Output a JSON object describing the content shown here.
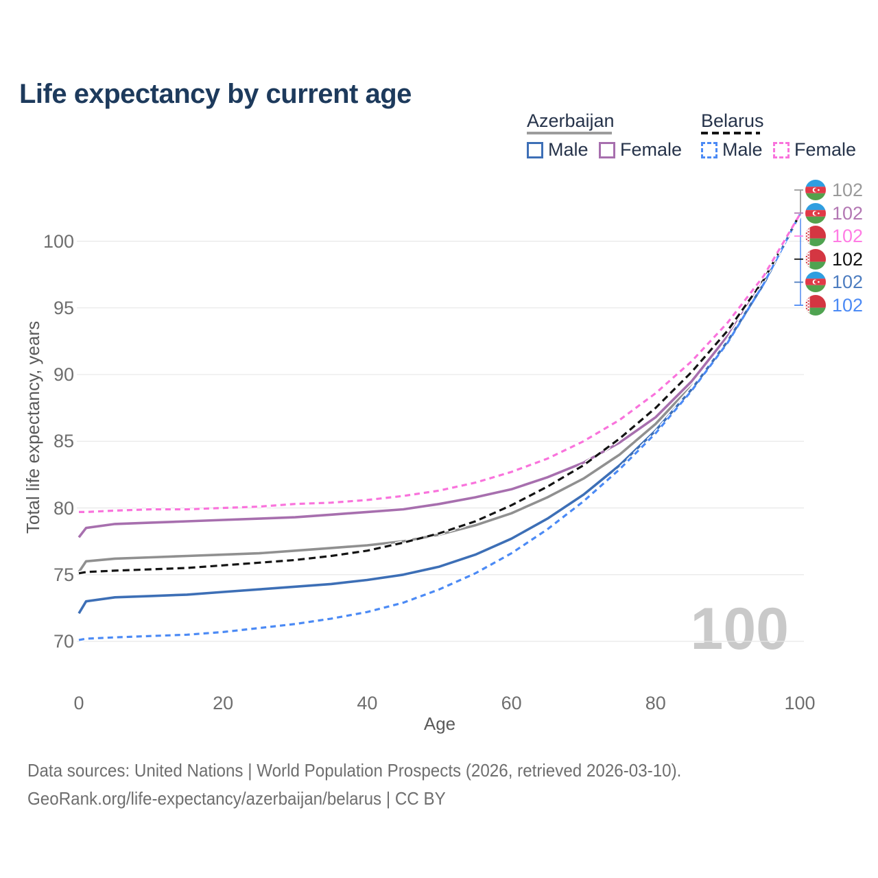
{
  "title": "Life expectancy by current age",
  "legend": {
    "groups": [
      {
        "country": "Azerbaijan",
        "line_style": "solid",
        "line_color": "#9c9c9c",
        "items": [
          {
            "label": "Male",
            "color": "#3d6fb6",
            "style": "solid"
          },
          {
            "label": "Female",
            "color": "#a76fae",
            "style": "solid"
          }
        ]
      },
      {
        "country": "Belarus",
        "line_style": "dashed",
        "line_color": "#141414",
        "items": [
          {
            "label": "Male",
            "color": "#4b8af5",
            "style": "dashed"
          },
          {
            "label": "Female",
            "color": "#f973dc",
            "style": "dashed"
          }
        ]
      }
    ]
  },
  "chart_data": {
    "type": "line",
    "title": "Life expectancy by current age",
    "xlabel": "Age",
    "ylabel": "Total life expectancy, years",
    "xlim": [
      0,
      100
    ],
    "ylim": [
      69.5,
      103
    ],
    "xticks": [
      0,
      20,
      40,
      60,
      80,
      100
    ],
    "yticks": [
      70,
      75,
      80,
      85,
      90,
      95,
      100
    ],
    "grid": "horizontal",
    "legend_position": "top-right",
    "x": [
      0,
      1,
      5,
      10,
      15,
      20,
      25,
      30,
      35,
      40,
      45,
      50,
      55,
      60,
      65,
      70,
      75,
      80,
      85,
      90,
      95,
      100
    ],
    "series": [
      {
        "name": "Azerbaijan",
        "country": "Azerbaijan",
        "sex": "total",
        "color": "#909090",
        "dashed": false,
        "values": [
          75.2,
          76.0,
          76.2,
          76.3,
          76.4,
          76.5,
          76.6,
          76.8,
          77.0,
          77.2,
          77.5,
          78.0,
          78.7,
          79.6,
          80.8,
          82.2,
          84.0,
          86.3,
          89.2,
          92.8,
          96.9,
          102
        ]
      },
      {
        "name": "Azerbaijan Male",
        "country": "Azerbaijan",
        "sex": "male",
        "color": "#3d6fb6",
        "dashed": false,
        "values": [
          72.1,
          73.0,
          73.3,
          73.4,
          73.5,
          73.7,
          73.9,
          74.1,
          74.3,
          74.6,
          75.0,
          75.6,
          76.5,
          77.7,
          79.2,
          81.0,
          83.2,
          85.8,
          88.9,
          92.5,
          96.8,
          102
        ]
      },
      {
        "name": "Azerbaijan Female",
        "country": "Azerbaijan",
        "sex": "female",
        "color": "#a76fae",
        "dashed": false,
        "values": [
          77.8,
          78.5,
          78.8,
          78.9,
          79.0,
          79.1,
          79.2,
          79.3,
          79.5,
          79.7,
          79.9,
          80.3,
          80.8,
          81.4,
          82.3,
          83.4,
          84.9,
          86.8,
          89.5,
          92.9,
          97.0,
          102
        ]
      },
      {
        "name": "Belarus",
        "country": "Belarus",
        "sex": "total",
        "color": "#141414",
        "dashed": true,
        "values": [
          75.1,
          75.2,
          75.3,
          75.4,
          75.5,
          75.7,
          75.9,
          76.1,
          76.4,
          76.8,
          77.4,
          78.1,
          79.0,
          80.2,
          81.6,
          83.2,
          85.2,
          87.5,
          90.2,
          93.3,
          97.1,
          102
        ]
      },
      {
        "name": "Belarus Male",
        "country": "Belarus",
        "sex": "male",
        "color": "#4b8af5",
        "dashed": true,
        "values": [
          70.1,
          70.2,
          70.3,
          70.4,
          70.5,
          70.7,
          71.0,
          71.3,
          71.7,
          72.2,
          72.9,
          73.9,
          75.1,
          76.6,
          78.4,
          80.5,
          82.9,
          85.6,
          88.8,
          92.4,
          96.8,
          102
        ]
      },
      {
        "name": "Belarus Female",
        "country": "Belarus",
        "sex": "female",
        "color": "#f973dc",
        "dashed": true,
        "values": [
          79.7,
          79.7,
          79.8,
          79.9,
          79.9,
          80.0,
          80.1,
          80.3,
          80.4,
          80.6,
          80.9,
          81.3,
          81.9,
          82.7,
          83.7,
          85.0,
          86.6,
          88.6,
          91.0,
          93.9,
          97.4,
          102
        ]
      }
    ],
    "end_labels": [
      {
        "flag": "azerbaijan",
        "series": "Azerbaijan",
        "label": "102",
        "color": "#9a9a9a"
      },
      {
        "flag": "azerbaijan",
        "series": "Azerbaijan Female",
        "label": "102",
        "color": "#b377b3"
      },
      {
        "flag": "belarus",
        "series": "Belarus Female",
        "label": "102",
        "color": "#ff7ce4"
      },
      {
        "flag": "belarus",
        "series": "Belarus",
        "label": "102",
        "color": "#141414"
      },
      {
        "flag": "azerbaijan",
        "series": "Azerbaijan Male",
        "label": "102",
        "color": "#4d7dc0"
      },
      {
        "flag": "belarus",
        "series": "Belarus Male",
        "label": "102",
        "color": "#4b8af5"
      }
    ]
  },
  "watermark": "100",
  "footer": {
    "line1": "Data sources: United Nations | World Population Prospects (2026, retrieved 2026-03-10).",
    "line2": "GeoRank.org/life-expectancy/azerbaijan/belarus | CC BY"
  }
}
